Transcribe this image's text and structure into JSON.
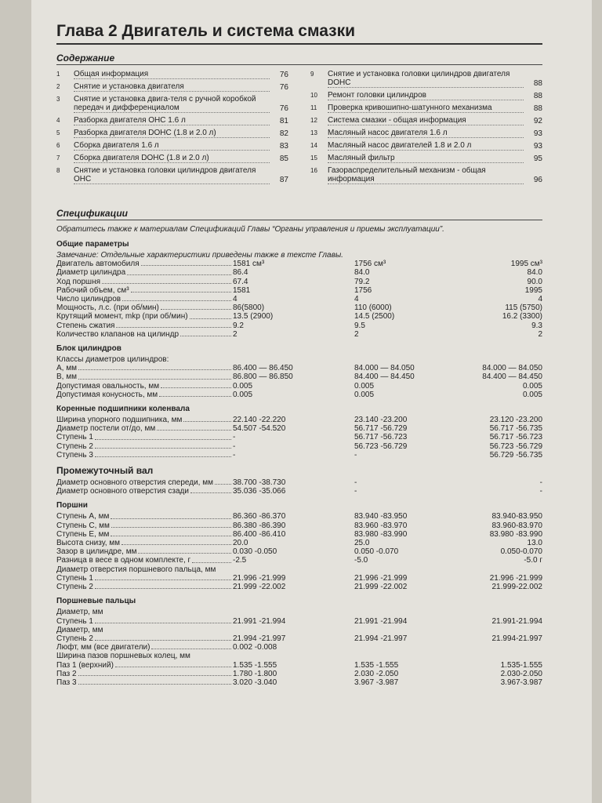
{
  "title": "Глава 2 Двигатель и система смазки",
  "contents": {
    "heading": "Содержание",
    "left": [
      {
        "num": "1",
        "label": "Общая информация",
        "page": "76"
      },
      {
        "num": "2",
        "label": "Снятие и установка двигателя",
        "page": "76"
      },
      {
        "num": "3",
        "label": "Снятие и установка двига-теля с ручной коробкой передач и дифференциалом",
        "page": "76"
      },
      {
        "num": "4",
        "label": "Разборка двигателя OHC 1.6 л",
        "page": "81"
      },
      {
        "num": "5",
        "label": "Разборка двигателя DOHC (1.8 и 2.0 л)",
        "page": "82"
      },
      {
        "num": "6",
        "label": "Сборка двигателя 1.6 л",
        "page": "83"
      },
      {
        "num": "7",
        "label": "Сборка двигателя DOHC (1.8 и 2.0 л)",
        "page": "85"
      },
      {
        "num": "8",
        "label": "Снятие и установка головки цилиндров двигателя OHC",
        "page": "87"
      }
    ],
    "right": [
      {
        "num": "9",
        "label": "Снятие и установка головки цилиндров двигателя DOHC",
        "page": "88"
      },
      {
        "num": "10",
        "label": "Ремонт головки цилиндров",
        "page": "88"
      },
      {
        "num": "11",
        "label": "Проверка кривошипно-шатунного механизма",
        "page": "88"
      },
      {
        "num": "12",
        "label": "Система смазки - общая информация",
        "page": "92"
      },
      {
        "num": "13",
        "label": "Масляный насос двигателя 1.6 л",
        "page": "93"
      },
      {
        "num": "14",
        "label": "Масляный насос двигателей 1.8 и 2.0 л",
        "page": "93"
      },
      {
        "num": "15",
        "label": "Масляный фильтр",
        "page": "95"
      },
      {
        "num": "16",
        "label": "Газораспределительный механизм - общая информация",
        "page": "96"
      }
    ]
  },
  "specifications": {
    "heading": "Спецификации",
    "note": "Обратитесь также к материалам Спецификаций Главы “Органы управления и приемы эксплуатации”.",
    "sections": [
      {
        "title": "Общие параметры",
        "remark": "Замечание: Отдельные характеристики приведены также в тексте Главы.",
        "rows": [
          [
            "Двигатель автомобиля",
            "1581 см³",
            "1756 см³",
            "1995 см³"
          ],
          [
            "Диаметр цилиндра",
            "86.4",
            "84.0",
            "84.0"
          ],
          [
            "Ход поршня",
            "67.4",
            "79.2",
            "90.0"
          ],
          [
            "Рабочий объем, см³",
            "1581",
            "1756",
            "1995"
          ],
          [
            "Число цилиндров",
            "4",
            "4",
            "4"
          ],
          [
            "Мощность, л.с. (при об/мин)",
            "86(5800)",
            "110 (6000)",
            "115 (5750)"
          ],
          [
            "Крутящий момент, mkp (при об/мин)",
            "13.5 (2900)",
            "14.5 (2500)",
            "16.2 (3300)"
          ],
          [
            "Степень сжатия",
            "9.2",
            "9.5",
            "9.3"
          ],
          [
            "Количество клапанов на цилиндр",
            "2",
            "2",
            "2"
          ]
        ]
      },
      {
        "title": "Блок цилиндров",
        "rows": [
          [
            "Классы диаметров цилиндров:"
          ],
          [
            "А, мм",
            "86.400 — 86.450",
            "84.000 — 84.050",
            "84.000 — 84.050"
          ],
          [
            "В, мм",
            "86.800 — 86.850",
            "84.400 — 84.450",
            "84.400 — 84.450"
          ],
          [
            "Допустимая овальность, мм",
            "0.005",
            "0.005",
            "0.005"
          ],
          [
            "Допустимая конусность, мм",
            "0.005",
            "0.005",
            "0.005"
          ]
        ]
      },
      {
        "title": "Коренные подшипники коленвала",
        "rows": [
          [
            "Ширина упорного подшипника, мм",
            "22.140 -22.220",
            "23.140 -23.200",
            "23.120 -23.200"
          ],
          [
            "Диаметр постели от/до, мм",
            "54.507 -54.520",
            "56.717 -56.729",
            "56.717 -56.735"
          ],
          [
            "Ступень 1",
            "-",
            "56.717 -56.723",
            "56.717 -56.723"
          ],
          [
            "Ступень 2",
            "-",
            "56.723 -56.729",
            "56.723 -56.729"
          ],
          [
            "Ступень 3",
            "-",
            "-",
            "56.729 -56.735"
          ]
        ]
      },
      {
        "title": "Промежуточный вал",
        "big": true,
        "rows": [
          [
            "Диаметр основного отверстия спереди, мм",
            "38.700 -38.730",
            "-",
            "-"
          ],
          [
            "Диаметр основного отверстия сзади",
            "35.036 -35.066",
            "-",
            "-"
          ]
        ]
      },
      {
        "title": "Поршни",
        "rows": [
          [
            "Ступень А, мм",
            "86.360 -86.370",
            "83.940 -83.950",
            "83.940-83.950"
          ],
          [
            "Ступень С, мм",
            "86.380 -86.390",
            "83.960 -83.970",
            "83.960-83.970"
          ],
          [
            "Ступень Е, мм",
            "86.400 -86.410",
            "83.980 -83.990",
            "83.980 -83.990"
          ],
          [
            "Высота снизу, мм",
            "20.0",
            "25.0",
            "13.0"
          ],
          [
            "Зазор в цилиндре, мм",
            "0.030 -0.050",
            "0.050 -0.070",
            "0.050-0.070"
          ],
          [
            "Разница в весе в одном комплекте, г",
            "-2.5",
            "-5.0",
            "-5.0 г"
          ],
          [
            "Диаметр отверстия поршневого пальца, мм"
          ],
          [
            "Ступень 1",
            "21.996 -21.999",
            "21.996 -21.999",
            "21.996 -21.999"
          ],
          [
            "Ступень 2",
            "21.999 -22.002",
            "21.999 -22.002",
            "21.999-22.002"
          ]
        ]
      },
      {
        "title": "Поршневые пальцы",
        "rows": [
          [
            "Диаметр, мм"
          ],
          [
            "Ступень 1",
            "21.991 -21.994",
            "21.991 -21.994",
            "21.991-21.994"
          ],
          [
            "Диаметр, мм"
          ],
          [
            "Ступень 2",
            "21.994 -21.997",
            "21.994 -21.997",
            "21.994-21.997"
          ],
          [
            "Люфт, мм (все двигатели)",
            "0.002 -0.008"
          ],
          [
            "Ширина пазов поршневых колец, мм"
          ],
          [
            "Паз 1 (верхний)",
            "1.535 -1.555",
            "1.535 -1.555",
            "1.535-1.555"
          ],
          [
            "Паз 2",
            "1.780 -1.800",
            "2.030 -2.050",
            "2.030-2.050"
          ],
          [
            "Паз 3",
            "3.020 -3.040",
            "3.967 -3.987",
            "3.967-3.987"
          ]
        ]
      }
    ]
  }
}
